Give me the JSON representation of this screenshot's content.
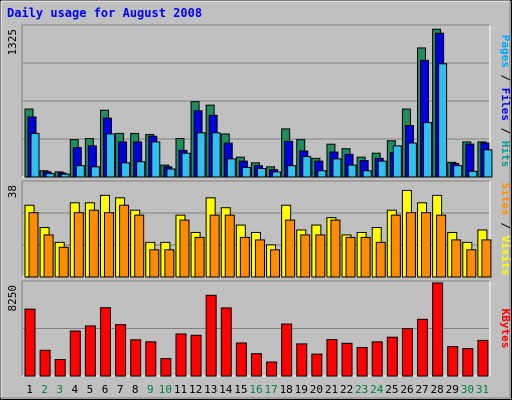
{
  "chart_data": {
    "type": "bar",
    "title": "Daily usage for August 2008",
    "categories": [
      "1",
      "2",
      "3",
      "4",
      "5",
      "6",
      "7",
      "8",
      "9",
      "10",
      "11",
      "12",
      "13",
      "14",
      "15",
      "16",
      "17",
      "18",
      "19",
      "20",
      "21",
      "22",
      "23",
      "24",
      "25",
      "26",
      "27",
      "28",
      "29",
      "30",
      "31"
    ],
    "weekend_days": [
      "2",
      "3",
      "9",
      "10",
      "16",
      "17",
      "23",
      "24",
      "30",
      "31"
    ],
    "panels": [
      {
        "name": "hits_files_pages",
        "ymax": 1325,
        "ymax_label": "1325",
        "legend": [
          {
            "label": "Pages",
            "color": "#00a8ff"
          },
          {
            "label": "Files",
            "color": "#0000ff"
          },
          {
            "label": "Hits",
            "color": "#00a090"
          }
        ],
        "series": [
          {
            "name": "Hits",
            "color": "#218c5f",
            "values": [
              600,
              55,
              45,
              330,
              340,
              590,
              385,
              385,
              375,
              105,
              340,
              665,
              635,
              380,
              175,
              125,
              90,
              425,
              330,
              165,
              290,
              250,
              175,
              210,
              320,
              600,
              1140,
              1305,
              130,
              310,
              310
            ]
          },
          {
            "name": "Files",
            "color": "#0000dd",
            "values": [
              530,
              45,
              35,
              260,
              275,
              520,
              310,
              310,
              360,
              90,
              235,
              585,
              545,
              300,
              140,
              100,
              65,
              315,
              230,
              140,
              220,
              200,
              145,
              165,
              215,
              455,
              1030,
              1270,
              120,
              290,
              300
            ]
          },
          {
            "name": "Pages",
            "color": "#30c0f0",
            "values": [
              385,
              30,
              25,
              100,
              90,
              380,
              125,
              135,
              310,
              70,
              210,
              390,
              390,
              160,
              85,
              75,
              45,
              100,
              180,
              55,
              160,
              105,
              55,
              140,
              275,
              300,
              480,
              1000,
              100,
              50,
              240
            ]
          }
        ]
      },
      {
        "name": "visits_sites",
        "ymax": 38,
        "ymax_label": "38",
        "legend": [
          {
            "label": "Sites",
            "color": "#ff8c00"
          },
          {
            "label": "Visits",
            "color": "#ffff00"
          }
        ],
        "series": [
          {
            "name": "Visits",
            "color": "#ffff00",
            "values": [
              29,
              20,
              14,
              30,
              30,
              33,
              32,
              27,
              14,
              14,
              25,
              18,
              32,
              28,
              21,
              18,
              13,
              29,
              19,
              21,
              24,
              17,
              18,
              20,
              27,
              35,
              30,
              33,
              18,
              14,
              19
            ]
          },
          {
            "name": "Sites",
            "color": "#ff8c00",
            "values": [
              26,
              17,
              12,
              26,
              27,
              26,
              29,
              25,
              11,
              11,
              23,
              16,
              25,
              25,
              16,
              15,
              11,
              23,
              17,
              17,
              23,
              16,
              16,
              14,
              25,
              26,
              26,
              25,
              15,
              11,
              15
            ]
          }
        ]
      },
      {
        "name": "kbytes",
        "ymax": 8250,
        "ymax_label": "8250",
        "legend": [
          {
            "label": "KBytes",
            "color": "#ff0000"
          }
        ],
        "series": [
          {
            "name": "KBytes",
            "color": "#ff0000",
            "values": [
              5930,
              2280,
              1460,
              3990,
              4440,
              6060,
              4560,
              3210,
              3030,
              1540,
              3730,
              3610,
              7160,
              6040,
              2930,
              1980,
              1240,
              4610,
              2850,
              1940,
              3230,
              2900,
              2530,
              3030,
              3440,
              4210,
              5030,
              8300,
              2610,
              2430,
              3160
            ]
          }
        ]
      }
    ]
  }
}
